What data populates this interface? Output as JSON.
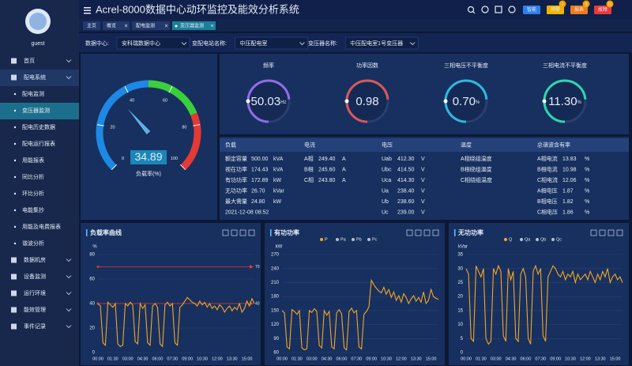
{
  "header": {
    "title": "Acrel-8000数据中心动环监控及能效分析系统",
    "buttons": [
      {
        "label": "智能",
        "color": "#2d7ff0"
      },
      {
        "label": "预警",
        "color": "#f0b400",
        "badge": "0"
      },
      {
        "label": "报表",
        "color": "#f07a1a",
        "badge": "0"
      },
      {
        "label": "故障",
        "color": "#e83a3a",
        "badge": "11"
      }
    ]
  },
  "user": "guest",
  "menu": [
    {
      "label": "首页"
    },
    {
      "label": "配电系统",
      "open": true,
      "children": [
        "配电监测",
        "变压器监测",
        "配电历史数据",
        "配电运行报表",
        "用能报表",
        "同比分析",
        "环比分析",
        "电能集抄",
        "用能及电费报表",
        "谐波分析"
      ],
      "active": 1
    },
    {
      "label": "数据机房"
    },
    {
      "label": "设备监测"
    },
    {
      "label": "运行环境"
    },
    {
      "label": "能效管理"
    },
    {
      "label": "事件记录"
    }
  ],
  "tabs": [
    "主页",
    "概览",
    "配电监测",
    "变压器监测"
  ],
  "filters": [
    {
      "label": "数据中心:",
      "value": "安科瑞数据中心"
    },
    {
      "label": "变配电站名称:",
      "value": "中压配电室"
    },
    {
      "label": "变压器名称:",
      "value": "中压配电室1号变压器"
    }
  ],
  "gauge": {
    "type": "gauge",
    "value": 34.89,
    "label": "负载率(%)",
    "min": 0,
    "max": 100,
    "ticks": [
      0,
      20,
      40,
      60,
      80,
      100
    ],
    "bands": [
      {
        "to": 50,
        "color": "#1e88e5"
      },
      {
        "to": 75,
        "color": "#3ccf3c"
      },
      {
        "to": 100,
        "color": "#e53935"
      }
    ]
  },
  "indicators": [
    {
      "title": "频率",
      "value": 50.03,
      "unit": "Hz",
      "color": "#a070f5"
    },
    {
      "title": "功率因数",
      "value": 0.98,
      "unit": "",
      "color": "#f05a5a"
    },
    {
      "title": "三相电压不平衡度",
      "value": 0.7,
      "value_label": "0.70",
      "unit": "%",
      "color": "#2ec7e8"
    },
    {
      "title": "三相电流不平衡度",
      "value": 11.3,
      "value_label": "11.30",
      "unit": "%",
      "color": "#2ee8b0"
    }
  ],
  "table": {
    "header": [
      "负载",
      "电流",
      "电压",
      "温度",
      "总谐波含有率"
    ],
    "phase_colors": [
      "#f5d742",
      "#7ed957",
      "#ff4d4d"
    ],
    "rows": [
      [
        [
          "额定容量",
          "500.00",
          "kVA"
        ],
        [
          "A相",
          "249.40",
          "A"
        ],
        [
          "Uab",
          "412.30",
          "V"
        ],
        [
          "A相绕组温度"
        ],
        [
          "A相电流",
          "13.83",
          "%"
        ]
      ],
      [
        [
          "视在功率",
          "174.43",
          "kVA"
        ],
        [
          "B相",
          "245.60",
          "A"
        ],
        [
          "Ubc",
          "414.50",
          "V"
        ],
        [
          "B相绕组温度"
        ],
        [
          "B相电流",
          "10.98",
          "%"
        ]
      ],
      [
        [
          "有功功率",
          "172.89",
          "kW"
        ],
        [
          "C相",
          "243.80",
          "A"
        ],
        [
          "Uca",
          "414.30",
          "V"
        ],
        [
          "C相绕组温度"
        ],
        [
          "C相电流",
          "12.06",
          "%"
        ]
      ],
      [
        [
          "无功功率",
          "26.70",
          "kVar"
        ],
        [],
        [
          "Ua",
          "238.40",
          "V"
        ],
        [],
        [
          "A相电压",
          "1.87",
          "%"
        ]
      ],
      [
        [
          "最大需量",
          "24.80",
          "kW"
        ],
        [],
        [
          "Ub",
          "238.60",
          "V"
        ],
        [],
        [
          "B相电压",
          "1.82",
          "%"
        ]
      ],
      [
        [
          "2021-12-08 08:52"
        ],
        [],
        [
          "Uc",
          "239.00",
          "V"
        ],
        [],
        [
          "C相电压",
          "1.86",
          "%"
        ]
      ]
    ]
  },
  "chart_data": [
    {
      "type": "line",
      "title": "负载率曲线",
      "ylabel": "%",
      "ylim": [
        0,
        80
      ],
      "yticks": [
        0,
        20,
        40,
        60,
        80
      ],
      "grid": true,
      "categories": [
        "00:00",
        null,
        null,
        null,
        null,
        null,
        "01:30",
        null,
        null,
        null,
        null,
        null,
        "03:00",
        null,
        null,
        null,
        null,
        null,
        "04:30",
        null,
        null,
        null,
        null,
        null,
        "06:00",
        null,
        null,
        null,
        null,
        null,
        "07:30",
        null,
        null,
        null,
        null,
        null,
        "09:00",
        null,
        null,
        null,
        null,
        null,
        "10:30",
        null,
        null,
        null,
        null,
        null,
        "12:00",
        null,
        null,
        null,
        null,
        null,
        "13:30",
        null,
        null,
        null,
        null,
        null,
        "15:00",
        null,
        null,
        null
      ],
      "series": [
        {
          "name": "负载率",
          "color": "#f5a623",
          "values": [
            40,
            38,
            8,
            6,
            41,
            39,
            37,
            40,
            7,
            5,
            6,
            40,
            38,
            41,
            39,
            9,
            7,
            40,
            36,
            39,
            8,
            6,
            38,
            40,
            37,
            7,
            5,
            39,
            41,
            38,
            40,
            8,
            6,
            37,
            39,
            42,
            45,
            43,
            41,
            40,
            38,
            42,
            39,
            41,
            37,
            40,
            36,
            38,
            35,
            39,
            37,
            33,
            36,
            38,
            34,
            37,
            35,
            40,
            33,
            36,
            42,
            38,
            44,
            40
          ]
        }
      ],
      "mark_lines": [
        {
          "value": 70,
          "color": "#e53935"
        },
        {
          "value": 40,
          "color": "#e53935"
        }
      ]
    },
    {
      "type": "line",
      "title": "有功功率",
      "ylabel": "kW",
      "ylim": [
        60,
        270
      ],
      "yticks": [
        60,
        90,
        120,
        150,
        180,
        210,
        240,
        270
      ],
      "grid": true,
      "legend": [
        "P",
        "Pa",
        "Pb",
        "Pc"
      ],
      "categories": [
        "00:00",
        null,
        null,
        null,
        null,
        null,
        "01:30",
        null,
        null,
        null,
        null,
        null,
        "03:00",
        null,
        null,
        null,
        null,
        null,
        "04:30",
        null,
        null,
        null,
        null,
        null,
        "06:00",
        null,
        null,
        null,
        null,
        null,
        "07:30",
        null,
        null,
        null,
        null,
        null,
        "09:00",
        null,
        null,
        null,
        null,
        null,
        "10:30",
        null,
        null,
        null,
        null,
        null,
        "12:00",
        null,
        null,
        null,
        null,
        null,
        "13:30",
        null,
        null,
        null,
        null,
        null,
        "15:00",
        null,
        null,
        null
      ],
      "series": [
        {
          "name": "P",
          "color": "#f5a623",
          "values": [
            150,
            145,
            72,
            68,
            152,
            148,
            142,
            150,
            70,
            66,
            68,
            150,
            146,
            154,
            148,
            75,
            70,
            150,
            140,
            148,
            72,
            68,
            145,
            152,
            143,
            70,
            66,
            148,
            155,
            145,
            150,
            72,
            68,
            142,
            148,
            158,
            215,
            205,
            198,
            192,
            188,
            200,
            185,
            195,
            178,
            190,
            172,
            182,
            168,
            186,
            178,
            165,
            175,
            182,
            170,
            178,
            168,
            190,
            165,
            172,
            195,
            180,
            176,
            174
          ]
        }
      ]
    },
    {
      "type": "line",
      "title": "无功功率",
      "ylabel": "kVar",
      "ylim": [
        0,
        35
      ],
      "yticks": [
        0,
        5,
        10,
        15,
        20,
        25,
        30,
        35
      ],
      "grid": true,
      "legend": [
        "Q",
        "Qa",
        "Qb",
        "Qc"
      ],
      "categories": [
        "00:00",
        null,
        null,
        null,
        null,
        null,
        "01:30",
        null,
        null,
        null,
        null,
        null,
        "03:00",
        null,
        null,
        null,
        null,
        null,
        "04:30",
        null,
        null,
        null,
        null,
        null,
        "06:00",
        null,
        null,
        null,
        null,
        null,
        "07:30",
        null,
        null,
        null,
        null,
        null,
        "09:00",
        null,
        null,
        null,
        null,
        null,
        "10:30",
        null,
        null,
        null,
        null,
        null,
        "12:00",
        null,
        null,
        null,
        null,
        null,
        "13:30",
        null,
        null,
        null,
        null,
        null,
        "15:00",
        null,
        null,
        null
      ],
      "series": [
        {
          "name": "Q",
          "color": "#f5a623",
          "values": [
            30,
            28,
            5,
            4,
            31,
            29,
            27,
            30,
            5,
            3,
            4,
            30,
            28,
            31,
            29,
            6,
            4,
            30,
            26,
            29,
            5,
            4,
            28,
            30,
            27,
            5,
            3,
            29,
            31,
            28,
            30,
            6,
            4,
            27,
            29,
            31,
            30,
            28,
            27,
            29,
            26,
            28,
            27,
            29,
            25,
            28,
            26,
            27,
            28,
            26,
            29,
            27,
            25,
            28,
            26,
            29,
            27,
            30,
            25,
            27,
            28,
            26,
            27,
            25
          ]
        }
      ]
    }
  ]
}
